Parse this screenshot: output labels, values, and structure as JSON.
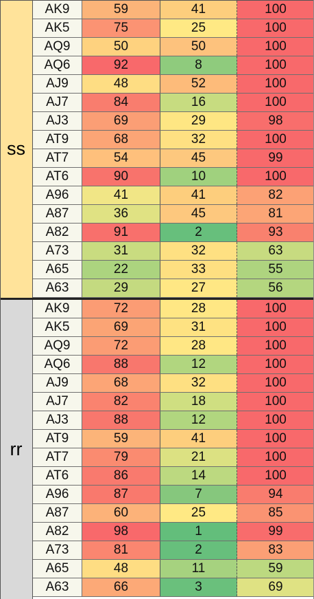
{
  "groups": [
    {
      "label": "ss",
      "label_bg": "#ffe39a",
      "rows": [
        {
          "hand": "AK9",
          "a": "59",
          "b": "41",
          "c": "100",
          "ca": "#fcb479",
          "cb": "#fdce7d",
          "cc": "#f8696b"
        },
        {
          "hand": "AK5",
          "a": "75",
          "b": "25",
          "c": "100",
          "ca": "#fb9373",
          "cb": "#ffe984",
          "cc": "#f8696b"
        },
        {
          "hand": "AQ9",
          "a": "50",
          "b": "50",
          "c": "100",
          "ca": "#fed27f",
          "cb": "#fdc27d",
          "cc": "#f8696b"
        },
        {
          "hand": "AQ6",
          "a": "92",
          "b": "8",
          "c": "100",
          "ca": "#f8696b",
          "cb": "#8fcb7d",
          "cc": "#f8696b"
        },
        {
          "hand": "AJ9",
          "a": "48",
          "b": "52",
          "c": "100",
          "ca": "#fedd83",
          "cb": "#fdbb7a",
          "cc": "#f8696b"
        },
        {
          "hand": "AJ7",
          "a": "84",
          "b": "16",
          "c": "100",
          "ca": "#f97d6e",
          "cb": "#c7dc80",
          "cc": "#f8696b"
        },
        {
          "hand": "AJ3",
          "a": "69",
          "b": "29",
          "c": "98",
          "ca": "#fb9e75",
          "cb": "#fee683",
          "cc": "#f86e6c"
        },
        {
          "hand": "AT9",
          "a": "68",
          "b": "32",
          "c": "100",
          "ca": "#fca576",
          "cb": "#fee082",
          "cc": "#f8696b"
        },
        {
          "hand": "AT7",
          "a": "54",
          "b": "45",
          "c": "99",
          "ca": "#fec07c",
          "cb": "#fdc87e",
          "cc": "#f8696b"
        },
        {
          "hand": "AT6",
          "a": "90",
          "b": "10",
          "c": "100",
          "ca": "#f8736c",
          "cb": "#a0d17e",
          "cc": "#f8696b"
        },
        {
          "hand": "A96",
          "a": "41",
          "b": "41",
          "c": "82",
          "ca": "#f1e686",
          "cb": "#fdce7d",
          "cc": "#fca175"
        },
        {
          "hand": "A87",
          "a": "36",
          "b": "45",
          "c": "81",
          "ca": "#e0e283",
          "cb": "#fdc87e",
          "cc": "#fca576"
        },
        {
          "hand": "A82",
          "a": "91",
          "b": "2",
          "c": "93",
          "ca": "#f8706c",
          "cb": "#67bf7c",
          "cc": "#f9816e"
        },
        {
          "hand": "A73",
          "a": "31",
          "b": "32",
          "c": "63",
          "ca": "#c9dc80",
          "cb": "#fee082",
          "cc": "#c7db80"
        },
        {
          "hand": "A65",
          "a": "22",
          "b": "33",
          "c": "55",
          "ca": "#acd47f",
          "cb": "#fedf81",
          "cc": "#aed47f"
        },
        {
          "hand": "A63",
          "a": "29",
          "b": "27",
          "c": "56",
          "ca": "#c4da80",
          "cb": "#ffe784",
          "cc": "#b4d67f"
        }
      ]
    },
    {
      "label": "rr",
      "label_bg": "#d9d9d9",
      "rows": [
        {
          "hand": "AK9",
          "a": "72",
          "b": "28",
          "c": "100",
          "ca": "#fb9c74",
          "cb": "#ffe784",
          "cc": "#f8696b"
        },
        {
          "hand": "AK5",
          "a": "69",
          "b": "31",
          "c": "100",
          "ca": "#fba475",
          "cb": "#fee282",
          "cc": "#f8696b"
        },
        {
          "hand": "AQ9",
          "a": "72",
          "b": "28",
          "c": "100",
          "ca": "#fb9c74",
          "cb": "#ffe784",
          "cc": "#f8696b"
        },
        {
          "hand": "AQ6",
          "a": "88",
          "b": "12",
          "c": "100",
          "ca": "#f8776d",
          "cb": "#b1d67f",
          "cc": "#f8696b"
        },
        {
          "hand": "AJ9",
          "a": "68",
          "b": "32",
          "c": "100",
          "ca": "#fca576",
          "cb": "#fee082",
          "cc": "#f8696b"
        },
        {
          "hand": "AJ7",
          "a": "82",
          "b": "18",
          "c": "100",
          "ca": "#fa836f",
          "cb": "#cfdf81",
          "cc": "#f8696b"
        },
        {
          "hand": "AJ3",
          "a": "88",
          "b": "12",
          "c": "100",
          "ca": "#f8776d",
          "cb": "#b1d67f",
          "cc": "#f8696b"
        },
        {
          "hand": "AT9",
          "a": "59",
          "b": "41",
          "c": "100",
          "ca": "#fcb479",
          "cb": "#fdce7d",
          "cc": "#f8696b"
        },
        {
          "hand": "AT7",
          "a": "79",
          "b": "21",
          "c": "100",
          "ca": "#fa8b70",
          "cb": "#dce182",
          "cc": "#f8696b"
        },
        {
          "hand": "AT6",
          "a": "86",
          "b": "14",
          "c": "100",
          "ca": "#f97a6e",
          "cb": "#bcd980",
          "cc": "#f8696b"
        },
        {
          "hand": "A96",
          "a": "87",
          "b": "7",
          "c": "94",
          "ca": "#f9796d",
          "cb": "#86c77d",
          "cc": "#f97c6e"
        },
        {
          "hand": "A87",
          "a": "60",
          "b": "25",
          "c": "85",
          "ca": "#fcb279",
          "cb": "#ffe984",
          "cc": "#fa9372"
        },
        {
          "hand": "A82",
          "a": "98",
          "b": "1",
          "c": "99",
          "ca": "#f8696b",
          "cb": "#63be7b",
          "cc": "#f86c6c"
        },
        {
          "hand": "A73",
          "a": "81",
          "b": "2",
          "c": "83",
          "ca": "#fa8670",
          "cb": "#67bf7c",
          "cc": "#fb9f75"
        },
        {
          "hand": "A65",
          "a": "48",
          "b": "11",
          "c": "59",
          "ca": "#fedd83",
          "cb": "#a6d27f",
          "cc": "#bcd980"
        },
        {
          "hand": "A63",
          "a": "66",
          "b": "3",
          "c": "69",
          "ca": "#fca977",
          "cb": "#6ac07c",
          "cc": "#dfe283"
        }
      ]
    }
  ]
}
